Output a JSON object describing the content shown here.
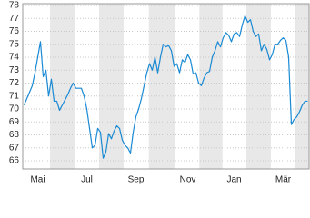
{
  "chart_data": {
    "type": "line",
    "categories": [
      null,
      null,
      null,
      null,
      null,
      "Mai",
      null,
      null,
      null,
      null,
      null,
      null,
      null,
      null,
      null,
      null,
      null,
      null,
      null,
      null,
      null,
      null,
      null,
      "Jul",
      null,
      null,
      null,
      null,
      null,
      null,
      null,
      null,
      null,
      null,
      null,
      null,
      null,
      null,
      null,
      null,
      null,
      "Sep",
      null,
      null,
      null,
      null,
      null,
      null,
      null,
      null,
      null,
      null,
      null,
      null,
      null,
      null,
      null,
      null,
      null,
      null,
      "Nov",
      null,
      null,
      null,
      null,
      null,
      null,
      null,
      null,
      null,
      null,
      null,
      null,
      null,
      null,
      null,
      null,
      "Jan",
      null,
      null,
      null,
      null,
      null,
      null,
      null,
      null,
      null,
      null,
      null,
      null,
      null,
      null,
      null,
      null,
      null,
      "Mär",
      null,
      null,
      null,
      null,
      null,
      null,
      null,
      null,
      null
    ],
    "values": [
      70.3,
      70.8,
      71.3,
      71.8,
      72.8,
      74,
      75.2,
      72.5,
      73,
      71,
      72.3,
      70.6,
      70.6,
      69.9,
      70.3,
      70.7,
      71.1,
      71.6,
      72,
      71.6,
      71.6,
      71.6,
      71,
      70,
      68.5,
      67,
      67.2,
      68.5,
      68.2,
      66.2,
      66.7,
      68.1,
      67.7,
      68.3,
      68.7,
      68.5,
      67.6,
      67.2,
      67,
      66.6,
      68.2,
      69.4,
      70,
      70.8,
      71.8,
      72.8,
      73.5,
      73,
      74,
      72.8,
      74,
      75,
      74.8,
      74.9,
      74.5,
      73.3,
      73.5,
      72.8,
      73.8,
      73.6,
      74.2,
      73.8,
      72.7,
      72.8,
      72,
      71.8,
      72.4,
      72.8,
      72.9,
      74,
      74.5,
      75.2,
      74.8,
      75.5,
      75.9,
      75.7,
      75.2,
      75.8,
      75.9,
      75.6,
      76.5,
      77.2,
      76.7,
      76.9,
      76,
      75.6,
      75.8,
      74.5,
      75,
      74.6,
      73.8,
      74.2,
      75,
      75,
      75.3,
      75.5,
      75.3,
      74,
      68.8,
      69.2,
      69.4,
      69.8,
      70.3,
      70.6,
      70.6
    ],
    "color": "#1a8ad4",
    "ylim": [
      65.37,
      78.14
    ],
    "yticks": [
      66,
      67,
      68,
      69,
      70,
      71,
      72,
      73,
      74,
      75,
      76,
      77,
      78
    ],
    "grid": true
  }
}
